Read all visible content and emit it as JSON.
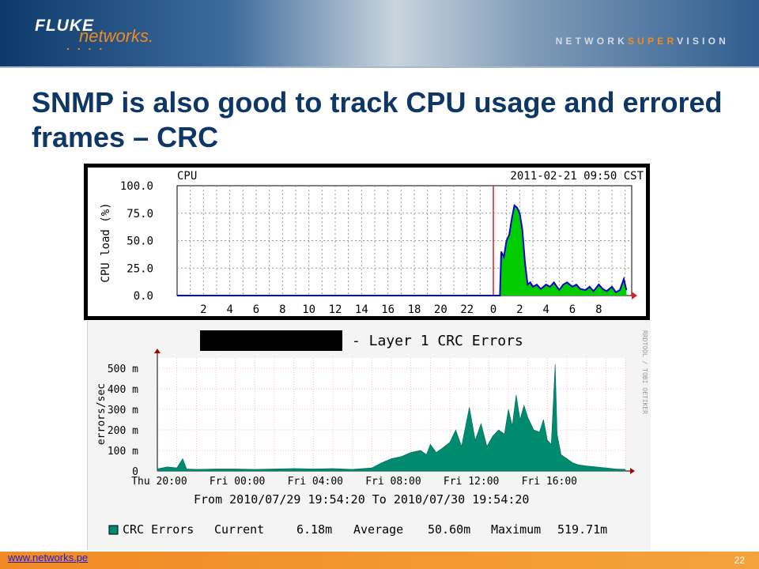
{
  "header": {
    "brand": "FLUKE",
    "brand_sub": "networks.",
    "brand_dots": ". . . .",
    "tagline_part1": "NETWORK",
    "tagline_part2": "SUPER",
    "tagline_part3": "VISION"
  },
  "slide": {
    "title": "SNMP is also good to track CPU usage and errored frames – CRC",
    "footer_url": "www.networks.pe",
    "page_number": "22"
  },
  "colors": {
    "title": "#0e3766",
    "accent_orange": "#f08a24",
    "cpu_fill": "#00cc00",
    "cpu_line": "#0000cc",
    "crc_fill": "#008a6e",
    "redline": "#e02020"
  },
  "chart_data": [
    {
      "type": "area",
      "title": "CPU",
      "timestamp": "2011-02-21 09:50 CST",
      "ylabel": "CPU load (%)",
      "ylim": [
        0,
        100
      ],
      "yticks": [
        "100.0",
        "75.0",
        "50.0",
        "25.0",
        "0.0"
      ],
      "xticks": [
        "2",
        "4",
        "6",
        "8",
        "10",
        "12",
        "14",
        "16",
        "18",
        "20",
        "22",
        "0",
        "2",
        "4",
        "6",
        "8"
      ],
      "grid": true,
      "x_hours": [
        0,
        24.5,
        24.6,
        24.8,
        25.0,
        25.2,
        25.4,
        25.6,
        25.8,
        26.0,
        26.2,
        26.4,
        26.6,
        26.8,
        27.0,
        27.3,
        27.6,
        28.0,
        28.3,
        28.6,
        29.0,
        29.3,
        29.6,
        30.0,
        30.3,
        30.6,
        31.0,
        31.3,
        31.6,
        32.0,
        32.3,
        32.6,
        33.0,
        33.3,
        33.6,
        33.9,
        34.1
      ],
      "values": [
        0,
        0,
        40,
        35,
        50,
        55,
        70,
        82,
        80,
        75,
        60,
        30,
        10,
        12,
        8,
        10,
        6,
        10,
        8,
        12,
        5,
        10,
        12,
        8,
        10,
        6,
        5,
        8,
        4,
        10,
        6,
        4,
        8,
        3,
        5,
        15,
        5
      ],
      "current_time_marker_hour": 24
    },
    {
      "type": "area",
      "title": "- Layer 1 CRC Errors",
      "ylabel": "errors/sec",
      "ylim": [
        0,
        550
      ],
      "yticks": [
        "500 m",
        "400 m",
        "300 m",
        "200 m",
        "100 m",
        "0"
      ],
      "xticks": [
        "Thu 20:00",
        "Fri 00:00",
        "Fri 04:00",
        "Fri 08:00",
        "Fri 12:00",
        "Fri 16:00"
      ],
      "grid": true,
      "subtitle": "From 2010/07/29 19:54:20 To 2010/07/30 19:54:20",
      "x_hours": [
        0,
        0.5,
        1.0,
        1.3,
        1.5,
        2.0,
        3.0,
        4.0,
        5.0,
        6.0,
        7.0,
        8.0,
        9.0,
        10.0,
        11.0,
        11.5,
        12.0,
        12.5,
        13.0,
        13.5,
        13.8,
        14.0,
        14.3,
        14.6,
        15.0,
        15.3,
        15.6,
        16.0,
        16.3,
        16.6,
        16.9,
        17.2,
        17.5,
        17.8,
        18.0,
        18.2,
        18.4,
        18.6,
        18.8,
        19.0,
        19.3,
        19.6,
        19.8,
        20.0,
        20.2,
        20.4,
        20.5,
        20.7,
        21.0,
        21.3,
        21.6,
        22.0,
        22.5,
        23.0,
        23.5,
        24.0
      ],
      "values": [
        10,
        20,
        15,
        60,
        10,
        8,
        10,
        10,
        8,
        10,
        12,
        10,
        12,
        8,
        15,
        40,
        60,
        70,
        90,
        100,
        80,
        130,
        90,
        110,
        140,
        200,
        120,
        310,
        150,
        230,
        120,
        170,
        200,
        180,
        300,
        220,
        370,
        250,
        320,
        260,
        200,
        190,
        250,
        150,
        130,
        519.71,
        180,
        80,
        60,
        40,
        30,
        25,
        20,
        15,
        10,
        8
      ],
      "legend": [
        {
          "name": "CRC Errors",
          "current": "6.18m",
          "average": "50.60m",
          "maximum": "519.71m"
        }
      ],
      "legend_labels": {
        "current": "Current",
        "average": "Average",
        "maximum": "Maximum"
      },
      "watermark": "RRDTOOL / TOBI OETIKER"
    }
  ]
}
